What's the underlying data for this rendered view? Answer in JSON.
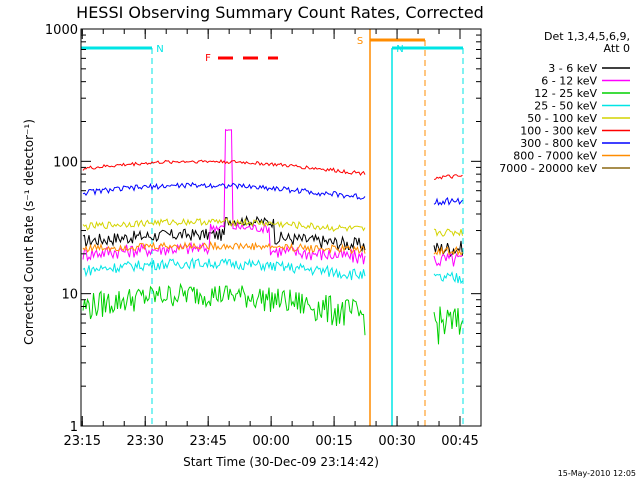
{
  "chart_data": {
    "type": "line",
    "title": "HESSI Observing Summary Count Rates, Corrected",
    "xlabel": "Start Time (30-Dec-09 23:14:42)",
    "ylabel": "Corrected Count Rate (s⁻¹ detector⁻¹)",
    "ylim": [
      1,
      1000
    ],
    "yscale": "log",
    "y_ticks": [
      {
        "value": 1,
        "label": "1"
      },
      {
        "value": 10,
        "label": "10"
      },
      {
        "value": 100,
        "label": "100"
      },
      {
        "value": 1000,
        "label": "1000"
      }
    ],
    "xlim": [
      "23:14:42",
      "00:50:00"
    ],
    "x_ticks": [
      "23:15",
      "23:30",
      "23:45",
      "00:00",
      "00:15",
      "00:30",
      "00:45"
    ],
    "legend_header": [
      "Det 1,3,4,5,6,9,",
      "Att 0"
    ],
    "legend_position": "right",
    "annotations": [
      {
        "label": "N",
        "type": "night",
        "color": "#00e5e5"
      },
      {
        "label": "F",
        "type": "flare",
        "color": "#ff0000"
      },
      {
        "label": "S",
        "type": "saa",
        "color": "#ff8c00"
      }
    ],
    "series": [
      {
        "name": "3 - 6 keV",
        "color": "#000000"
      },
      {
        "name": "6 - 12 keV",
        "color": "#ff00ff"
      },
      {
        "name": "12 - 25 keV",
        "color": "#00d000"
      },
      {
        "name": "25 - 50 keV",
        "color": "#00e5e5"
      },
      {
        "name": "50 - 100 keV",
        "color": "#d4d400"
      },
      {
        "name": "100 - 300 keV",
        "color": "#ff0000"
      },
      {
        "name": "300 - 800 keV",
        "color": "#0000ff"
      },
      {
        "name": "800 - 7000 keV",
        "color": "#ff8c00"
      },
      {
        "name": "7000 - 20000 keV",
        "color": "#8b6914"
      }
    ]
  },
  "footer": {
    "date_stamp": "15-May-2010 12:05"
  }
}
